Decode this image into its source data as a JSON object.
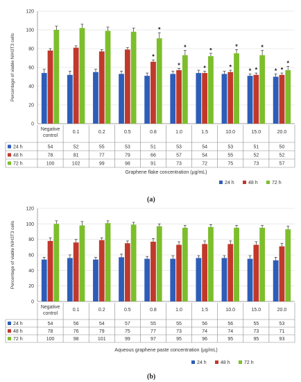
{
  "figure": {
    "caption_a": "(a)",
    "caption_b": "(b)"
  },
  "colors": {
    "s24": "#2E5DB8",
    "s48": "#C0392B",
    "s72": "#7DBE2C",
    "axis": "#888888",
    "grid": "#E4E4E4",
    "text": "#333333"
  },
  "chart_data": [
    {
      "type": "bar",
      "ylabel": "Percentage of viable NIH3T3 cells",
      "xlabel": "Graphene flake concentration (µg/mL)",
      "ylim": [
        0,
        120
      ],
      "yticks": [
        0,
        20,
        40,
        60,
        80,
        100,
        120
      ],
      "grid": true,
      "legend": "bottom-right",
      "categories": [
        "Negative control",
        "0.1",
        "0.2",
        "0.5",
        "0.8",
        "1.0",
        "1.5",
        "10.0",
        "15.0",
        "20.0"
      ],
      "series": [
        {
          "name": "24 h",
          "values": [
            54,
            52,
            55,
            53,
            51,
            53,
            54,
            53,
            51,
            50
          ]
        },
        {
          "name": "48 h",
          "values": [
            78,
            81,
            77,
            79,
            66,
            57,
            54,
            55,
            52,
            52
          ]
        },
        {
          "name": "72 h",
          "values": [
            100,
            102,
            99,
            98,
            91,
            73,
            72,
            75,
            73,
            57
          ]
        }
      ],
      "errors": [
        [
          4,
          4,
          3,
          3,
          3,
          3,
          3,
          3,
          2,
          3
        ],
        [
          2,
          2,
          2,
          2,
          2,
          2,
          2,
          2,
          2,
          2
        ],
        [
          4,
          4,
          4,
          4,
          6,
          5,
          3,
          4,
          5,
          4
        ]
      ],
      "annotations": [
        {
          "category_index": 4,
          "series_index": 1,
          "text": "*"
        },
        {
          "category_index": 4,
          "series_index": 2,
          "text": "*"
        },
        {
          "category_index": 5,
          "series_index": 1,
          "text": "*"
        },
        {
          "category_index": 5,
          "series_index": 2,
          "text": "*"
        },
        {
          "category_index": 6,
          "series_index": 1,
          "text": "*"
        },
        {
          "category_index": 6,
          "series_index": 2,
          "text": "*"
        },
        {
          "category_index": 7,
          "series_index": 1,
          "text": "*"
        },
        {
          "category_index": 7,
          "series_index": 2,
          "text": "*"
        },
        {
          "category_index": 8,
          "series_index": 0,
          "text": "*"
        },
        {
          "category_index": 8,
          "series_index": 1,
          "text": "*"
        },
        {
          "category_index": 8,
          "series_index": 2,
          "text": "*"
        },
        {
          "category_index": 9,
          "series_index": 0,
          "text": "*"
        },
        {
          "category_index": 9,
          "series_index": 1,
          "text": "*"
        },
        {
          "category_index": 9,
          "series_index": 2,
          "text": "*"
        }
      ]
    },
    {
      "type": "bar",
      "ylabel": "Percentage of viable NIH3T3 cells",
      "xlabel": "Aqueous graphene paste concentration (µg/mL)",
      "ylim": [
        0,
        120
      ],
      "yticks": [
        0,
        20,
        40,
        60,
        80,
        100,
        120
      ],
      "grid": true,
      "legend": "bottom-center",
      "categories": [
        "Negative control",
        "0.1",
        "0.2",
        "0.5",
        "0.8",
        "1.0",
        "1.5",
        "10.0",
        "15.0",
        "20.0"
      ],
      "series": [
        {
          "name": "24 h",
          "values": [
            54,
            56,
            54,
            57,
            55,
            55,
            56,
            56,
            55,
            53
          ]
        },
        {
          "name": "48 h",
          "values": [
            78,
            76,
            79,
            75,
            77,
            73,
            74,
            74,
            73,
            71
          ]
        },
        {
          "name": "72 h",
          "values": [
            100,
            98,
            101,
            99,
            97,
            95,
            96,
            95,
            95,
            93
          ]
        }
      ],
      "errors": [
        [
          3,
          4,
          3,
          4,
          3,
          4,
          3,
          3,
          4,
          4
        ],
        [
          4,
          4,
          3,
          3,
          4,
          4,
          4,
          4,
          4,
          4
        ],
        [
          4,
          5,
          3,
          3,
          3,
          3,
          3,
          3,
          3,
          4
        ]
      ],
      "annotations": []
    }
  ]
}
